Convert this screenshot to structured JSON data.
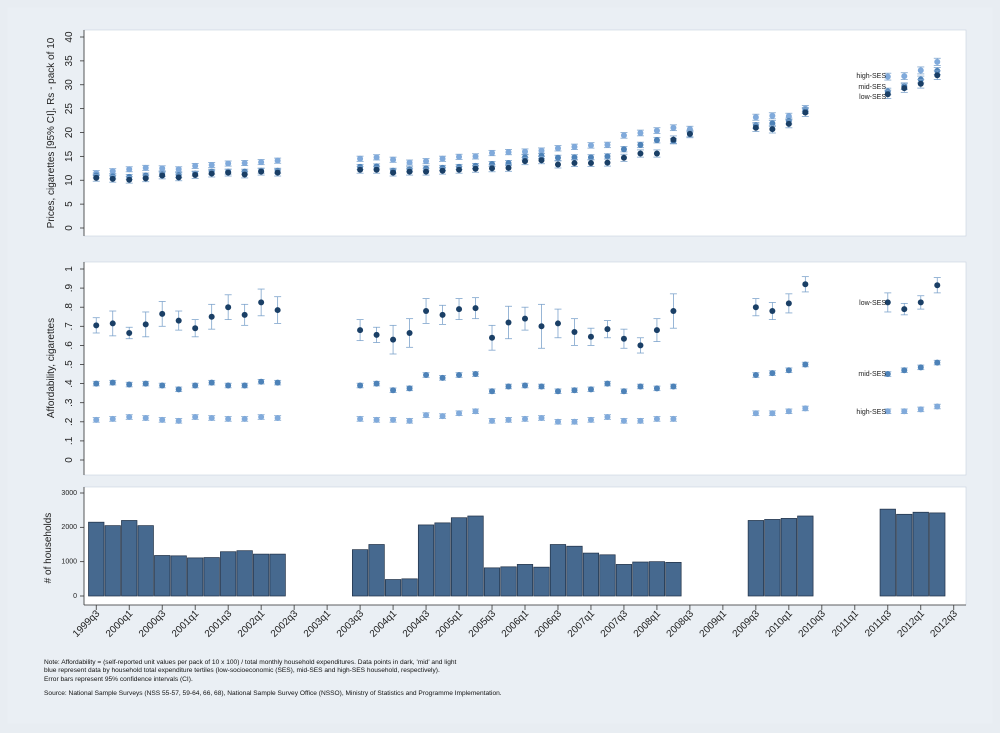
{
  "colors": {
    "low": "#1a3f66",
    "mid": "#4d82b8",
    "high": "#80aadb",
    "bar": "#46698f",
    "ci": "#7ea4cc",
    "panel": "#ffffff",
    "outer": "#e8edf2"
  },
  "quarters": [
    "1999q3",
    "1999q4",
    "2000q1",
    "2000q2",
    "2000q3",
    "2000q4",
    "2001q1",
    "2001q2",
    "2001q3",
    "2001q4",
    "2002q1",
    "2002q2",
    "2002q3",
    "2002q4",
    "2003q1",
    "2003q2",
    "2003q3",
    "2003q4",
    "2004q1",
    "2004q2",
    "2004q3",
    "2004q4",
    "2005q1",
    "2005q2",
    "2005q3",
    "2005q4",
    "2006q1",
    "2006q2",
    "2006q3",
    "2006q4",
    "2007q1",
    "2007q2",
    "2007q3",
    "2007q4",
    "2008q1",
    "2008q2",
    "2008q3",
    "2008q4",
    "2009q1",
    "2009q2",
    "2009q3",
    "2009q4",
    "2010q1",
    "2010q2",
    "2010q3",
    "2010q4",
    "2011q1",
    "2011q2",
    "2011q3",
    "2011q4",
    "2012q1",
    "2012q2",
    "2012q3"
  ],
  "x_ticks": [
    "1999q3",
    "2000q1",
    "2000q3",
    "2001q1",
    "2001q3",
    "2002q1",
    "2002q3",
    "2003q1",
    "2003q3",
    "2004q1",
    "2004q3",
    "2005q1",
    "2005q3",
    "2006q1",
    "2006q3",
    "2007q1",
    "2007q3",
    "2008q1",
    "2008q3",
    "2009q1",
    "2009q3",
    "2010q1",
    "2010q3",
    "2011q1",
    "2011q3",
    "2012q1",
    "2012q3"
  ],
  "chart_data": [
    {
      "type": "scatter",
      "ylabel": "Prices, cigarettes [95% CI], Rs - pack of 10",
      "ylim": [
        0,
        40
      ],
      "y_ticks": [
        "0",
        "5",
        "10",
        "15",
        "20",
        "25",
        "30",
        "35",
        "40"
      ],
      "y_tick_values": [
        0,
        5,
        10,
        15,
        20,
        25,
        30,
        35,
        40
      ],
      "series_labels": [
        "high-SES",
        "mid-SES",
        "low-SES"
      ],
      "series": [
        {
          "name": "low-SES",
          "values": [
            10.5,
            10.3,
            10.1,
            10.4,
            11.0,
            10.6,
            11.1,
            11.4,
            11.6,
            11.2,
            11.8,
            11.6,
            null,
            null,
            null,
            null,
            12.2,
            12.2,
            11.6,
            11.8,
            11.8,
            12.0,
            12.2,
            12.4,
            12.5,
            12.6,
            14.0,
            14.2,
            13.3,
            13.6,
            13.6,
            13.7,
            14.7,
            15.6,
            15.6,
            18.5,
            19.7,
            null,
            null,
            null,
            21.0,
            20.7,
            21.8,
            24.2,
            null,
            null,
            null,
            null,
            28.0,
            29.3,
            30.2,
            32.0,
            null
          ]
        },
        {
          "name": "mid-SES",
          "values": [
            11.0,
            10.8,
            10.7,
            11.0,
            11.3,
            11.1,
            11.4,
            11.8,
            11.8,
            11.8,
            12.0,
            12.0,
            null,
            null,
            null,
            null,
            12.8,
            12.9,
            12.0,
            12.3,
            12.5,
            12.6,
            12.8,
            13.0,
            13.4,
            13.6,
            14.8,
            15.1,
            14.7,
            14.8,
            14.8,
            15.0,
            16.5,
            17.4,
            18.4,
            18.2,
            19.7,
            null,
            null,
            null,
            21.5,
            21.9,
            22.4,
            24.6,
            null,
            null,
            null,
            null,
            28.6,
            29.7,
            31.1,
            32.9,
            null
          ]
        },
        {
          "name": "high-SES",
          "values": [
            11.5,
            11.9,
            12.3,
            12.6,
            12.5,
            12.3,
            13.0,
            13.2,
            13.5,
            13.6,
            13.8,
            14.1,
            null,
            null,
            null,
            null,
            14.5,
            14.8,
            14.3,
            13.7,
            14.0,
            14.5,
            14.9,
            15.0,
            15.7,
            15.9,
            16.0,
            16.2,
            16.7,
            17.0,
            17.3,
            17.4,
            19.4,
            19.9,
            20.4,
            21.0,
            20.7,
            null,
            null,
            null,
            23.2,
            23.5,
            23.4,
            25.0,
            null,
            null,
            null,
            null,
            31.7,
            31.8,
            33.0,
            34.8,
            null
          ]
        }
      ]
    },
    {
      "type": "scatter",
      "ylabel": "Affordability, cigarettes",
      "ylim": [
        0,
        1
      ],
      "y_ticks": [
        "0",
        ".1",
        ".2",
        ".3",
        ".4",
        ".5",
        ".6",
        ".7",
        ".8",
        ".9",
        "1"
      ],
      "y_tick_values": [
        0,
        0.1,
        0.2,
        0.3,
        0.4,
        0.5,
        0.6,
        0.7,
        0.8,
        0.9,
        1
      ],
      "series_labels": [
        "low-SES",
        "mid-SES",
        "high-SES"
      ],
      "series": [
        {
          "name": "low-SES",
          "values": [
            0.705,
            0.715,
            0.665,
            0.71,
            0.765,
            0.73,
            0.69,
            0.75,
            0.8,
            0.76,
            0.825,
            0.785,
            null,
            null,
            null,
            null,
            0.68,
            0.655,
            0.63,
            0.665,
            0.78,
            0.76,
            0.79,
            0.795,
            0.64,
            0.72,
            0.74,
            0.7,
            0.715,
            0.67,
            0.645,
            0.685,
            0.635,
            0.6,
            0.68,
            0.78,
            null,
            null,
            null,
            null,
            0.8,
            0.78,
            0.82,
            0.92,
            null,
            null,
            null,
            null,
            0.825,
            0.79,
            0.825,
            0.915,
            null
          ]
        },
        {
          "name": "mid-SES",
          "values": [
            0.4,
            0.405,
            0.395,
            0.4,
            0.39,
            0.37,
            0.39,
            0.405,
            0.39,
            0.39,
            0.41,
            0.405,
            null,
            null,
            null,
            null,
            0.39,
            0.4,
            0.365,
            0.375,
            0.445,
            0.43,
            0.445,
            0.45,
            0.36,
            0.385,
            0.39,
            0.385,
            0.36,
            0.365,
            0.37,
            0.4,
            0.36,
            0.385,
            0.375,
            0.385,
            null,
            null,
            null,
            null,
            0.445,
            0.455,
            0.47,
            0.5,
            null,
            null,
            null,
            null,
            0.45,
            0.47,
            0.485,
            0.51,
            null
          ]
        },
        {
          "name": "high-SES",
          "values": [
            0.21,
            0.215,
            0.225,
            0.22,
            0.21,
            0.205,
            0.225,
            0.22,
            0.215,
            0.215,
            0.225,
            0.22,
            null,
            null,
            null,
            null,
            0.215,
            0.21,
            0.21,
            0.205,
            0.235,
            0.23,
            0.245,
            0.255,
            0.205,
            0.21,
            0.215,
            0.22,
            0.2,
            0.2,
            0.21,
            0.225,
            0.205,
            0.205,
            0.215,
            0.215,
            null,
            null,
            null,
            null,
            0.245,
            0.245,
            0.255,
            0.27,
            null,
            null,
            null,
            null,
            0.255,
            0.255,
            0.265,
            0.28,
            null
          ]
        }
      ],
      "low_ci_half_width": [
        0.04,
        0.065,
        0.03,
        0.065,
        0.065,
        0.05,
        0.045,
        0.065,
        0.065,
        0.055,
        0.07,
        0.07,
        null,
        null,
        null,
        null,
        0.055,
        0.04,
        0.075,
        0.075,
        0.065,
        0.05,
        0.055,
        0.055,
        0.065,
        0.085,
        0.06,
        0.115,
        0.075,
        0.07,
        0.045,
        0.045,
        0.05,
        0.04,
        0.06,
        0.09,
        null,
        null,
        null,
        null,
        0.045,
        0.045,
        0.05,
        0.04,
        null,
        null,
        null,
        null,
        0.05,
        0.03,
        0.035,
        0.04,
        null
      ]
    },
    {
      "type": "bar",
      "ylabel": "# of households",
      "ylim": [
        0,
        3000
      ],
      "y_ticks": [
        "0",
        "1000",
        "2000",
        "3000"
      ],
      "y_tick_values": [
        0,
        1000,
        2000,
        3000
      ],
      "values": [
        2150,
        2050,
        2200,
        2050,
        1180,
        1170,
        1110,
        1120,
        1290,
        1320,
        1220,
        1220,
        null,
        null,
        null,
        null,
        1350,
        1500,
        480,
        500,
        2070,
        2130,
        2280,
        2330,
        820,
        850,
        920,
        840,
        1500,
        1450,
        1250,
        1200,
        920,
        990,
        1000,
        980,
        null,
        null,
        null,
        null,
        2200,
        2230,
        2260,
        2330,
        null,
        null,
        null,
        null,
        2530,
        2380,
        2440,
        2420,
        null
      ]
    }
  ],
  "notes": {
    "line1": "Note: Affordability = (self-reported unit values per pack of 10 x 100) / total monthly household expenditures. Data points in dark, 'mid' and light",
    "line2": "blue represent data by household total expenditure tertiles (low-socioeconomic (SES), mid-SES and high-SES household, respectively).",
    "line3": "Error bars represent 95% confidence intervals (CI).",
    "source": "Source: National Sample Surveys (NSS 55-57, 59-64, 66, 68), National Sample Survey Office (NSSO), Ministry of Statistics and Programme Implementation."
  }
}
